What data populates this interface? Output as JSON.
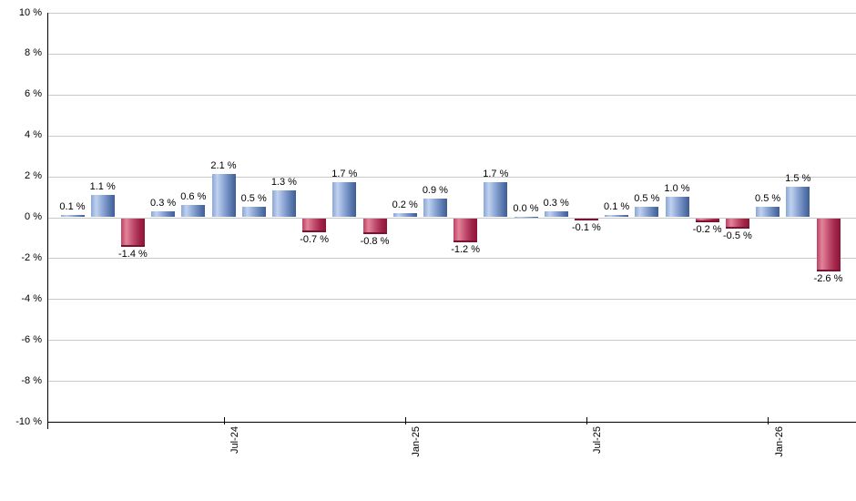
{
  "chart_data": {
    "type": "bar",
    "title": "",
    "xlabel": "",
    "ylabel": "",
    "unit": "%",
    "ylim": [
      -10,
      10
    ],
    "y_tick_step": 2,
    "grid": true,
    "legend": "none",
    "y_ticks": [
      "10 %",
      "8 %",
      "6 %",
      "4 %",
      "2 %",
      "0 %",
      "-2 %",
      "-4 %",
      "-6 %",
      "-8 %",
      "-10 %"
    ],
    "x_ticks": [
      {
        "label": "Jul-24",
        "bar_index": 5
      },
      {
        "label": "Jan-25",
        "bar_index": 11
      },
      {
        "label": "Jul-25",
        "bar_index": 17
      },
      {
        "label": "Jan-26",
        "bar_index": 23
      }
    ],
    "values": [
      0.1,
      1.1,
      -1.4,
      0.3,
      0.6,
      2.1,
      0.5,
      1.3,
      -0.7,
      1.7,
      -0.8,
      0.2,
      0.9,
      -1.2,
      1.7,
      0.0,
      0.3,
      -0.1,
      0.1,
      0.5,
      1.0,
      -0.2,
      -0.5,
      0.5,
      1.5,
      -2.6
    ],
    "bar_labels": [
      "0.1 %",
      "1.1 %",
      "-1.4 %",
      "0.3 %",
      "0.6 %",
      "2.1 %",
      "0.5 %",
      "1.3 %",
      "-0.7 %",
      "1.7 %",
      "-0.8 %",
      "0.2 %",
      "0.9 %",
      "-1.2 %",
      "1.7 %",
      "0.0 %",
      "0.3 %",
      "-0.1 %",
      "0.1 %",
      "0.5 %",
      "1.0 %",
      "-0.2 %",
      "-0.5 %",
      "0.5 %",
      "1.5 %",
      "-2.6 %"
    ],
    "colors": {
      "positive_base": "#3e5d95",
      "negative_base": "#8c1538",
      "positive_gradient": [
        "#8ba6d7",
        "#c1d2ef",
        "#8ba6d4",
        "#5d7bb0",
        "#3e5d95"
      ],
      "negative_gradient": [
        "#bb4265",
        "#e38399",
        "#c14e6f",
        "#a02448",
        "#8c1538"
      ],
      "gridline": "#c9c9c9",
      "axis": "#000000",
      "label_text": "#000000"
    }
  }
}
